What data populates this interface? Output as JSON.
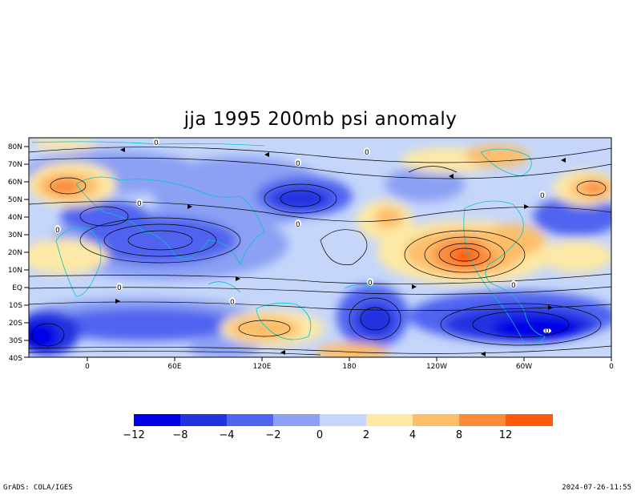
{
  "title": "jja 1995 200mb psi anomaly",
  "map": {
    "lat_labels": [
      "80N",
      "70N",
      "60N",
      "50N",
      "40N",
      "30N",
      "20N",
      "10N",
      "EQ",
      "10S",
      "20S",
      "30S",
      "40S"
    ],
    "lon_labels": [
      "0",
      "60E",
      "120E",
      "180",
      "120W",
      "60W",
      "0"
    ],
    "contour_labels": [
      "0",
      "0",
      "0",
      "0",
      "0",
      "0",
      "0",
      "0",
      "0",
      "0",
      "0",
      "0"
    ]
  },
  "colorbar": {
    "labels": [
      "−12",
      "−8",
      "−4",
      "−2",
      "0",
      "2",
      "4",
      "8",
      "12"
    ],
    "colors": [
      "#0000e6",
      "#2233e0",
      "#5064f0",
      "#8ca0f4",
      "#c5d6fa",
      "#fde9a6",
      "#fdbe6b",
      "#fb8a3a",
      "#ff5a0a"
    ]
  },
  "footer": {
    "left": "GrADS: COLA/IGES",
    "right": "2024-07-26-11:55"
  }
}
